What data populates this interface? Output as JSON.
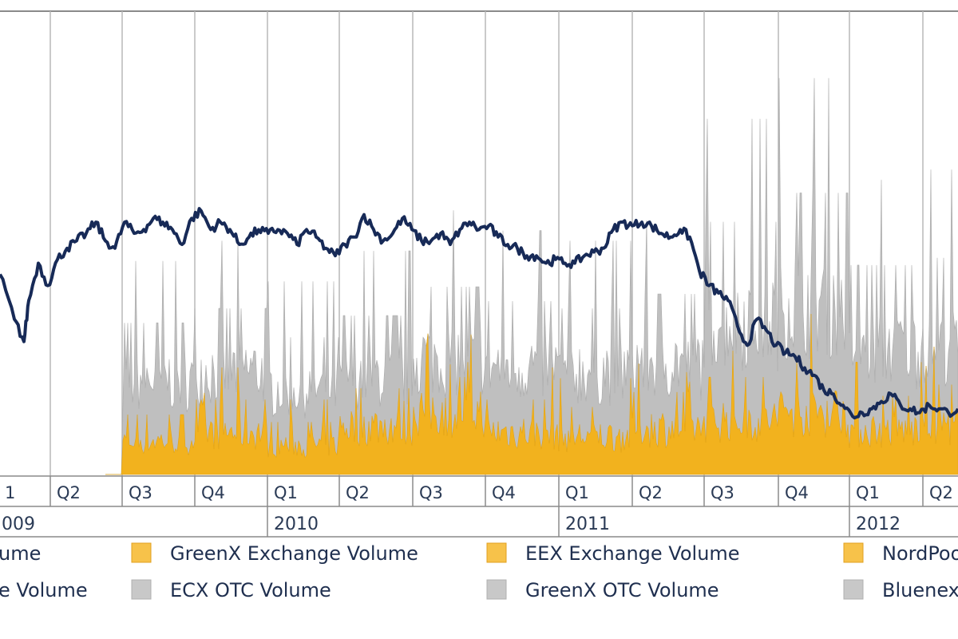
{
  "chart_data": {
    "type": "line",
    "title": "",
    "xlabel": "",
    "ylabel": "",
    "grid": true,
    "legend_position": "bottom",
    "colors": {
      "price_line": "#172a57",
      "exchange_volume": "#f2b21e",
      "otc_volume": "#bfbfbf",
      "gridline": "#b8b8b8",
      "axis_frame": "#8a8a8a",
      "legend_exchange_swatch": "#f7c24a",
      "legend_otc_swatch": "#c8c8c8"
    },
    "quarter_labels": [
      "1",
      "Q2",
      "Q3",
      "Q4",
      "Q1",
      "Q2",
      "Q3",
      "Q4",
      "Q1",
      "Q2",
      "Q3",
      "Q4",
      "Q1",
      "Q2"
    ],
    "year_labels": [
      "009",
      "2010",
      "2011",
      "2012"
    ],
    "x_range": [
      "2009-Q1",
      "2012-Q2"
    ],
    "price_line": {
      "name": "",
      "relative_level": [
        [
          0.0,
          0.52
        ],
        [
          0.015,
          0.4
        ],
        [
          0.025,
          0.34
        ],
        [
          0.03,
          0.45
        ],
        [
          0.04,
          0.55
        ],
        [
          0.05,
          0.49
        ],
        [
          0.06,
          0.56
        ],
        [
          0.07,
          0.59
        ],
        [
          0.08,
          0.61
        ],
        [
          0.09,
          0.63
        ],
        [
          0.1,
          0.66
        ],
        [
          0.11,
          0.61
        ],
        [
          0.12,
          0.59
        ],
        [
          0.13,
          0.66
        ],
        [
          0.14,
          0.63
        ],
        [
          0.15,
          0.64
        ],
        [
          0.16,
          0.67
        ],
        [
          0.17,
          0.66
        ],
        [
          0.18,
          0.64
        ],
        [
          0.19,
          0.6
        ],
        [
          0.2,
          0.67
        ],
        [
          0.21,
          0.69
        ],
        [
          0.22,
          0.64
        ],
        [
          0.23,
          0.66
        ],
        [
          0.24,
          0.64
        ],
        [
          0.25,
          0.6
        ],
        [
          0.26,
          0.62
        ],
        [
          0.27,
          0.64
        ],
        [
          0.28,
          0.63
        ],
        [
          0.29,
          0.64
        ],
        [
          0.3,
          0.63
        ],
        [
          0.31,
          0.6
        ],
        [
          0.32,
          0.64
        ],
        [
          0.33,
          0.62
        ],
        [
          0.34,
          0.59
        ],
        [
          0.35,
          0.57
        ],
        [
          0.36,
          0.6
        ],
        [
          0.37,
          0.62
        ],
        [
          0.38,
          0.68
        ],
        [
          0.39,
          0.64
        ],
        [
          0.4,
          0.61
        ],
        [
          0.41,
          0.63
        ],
        [
          0.42,
          0.67
        ],
        [
          0.43,
          0.64
        ],
        [
          0.44,
          0.61
        ],
        [
          0.45,
          0.61
        ],
        [
          0.46,
          0.63
        ],
        [
          0.47,
          0.6
        ],
        [
          0.48,
          0.64
        ],
        [
          0.49,
          0.66
        ],
        [
          0.5,
          0.64
        ],
        [
          0.51,
          0.65
        ],
        [
          0.52,
          0.62
        ],
        [
          0.53,
          0.6
        ],
        [
          0.54,
          0.59
        ],
        [
          0.55,
          0.57
        ],
        [
          0.56,
          0.57
        ],
        [
          0.57,
          0.55
        ],
        [
          0.58,
          0.56
        ],
        [
          0.59,
          0.55
        ],
        [
          0.6,
          0.55
        ],
        [
          0.61,
          0.57
        ],
        [
          0.62,
          0.58
        ],
        [
          0.63,
          0.59
        ],
        [
          0.64,
          0.64
        ],
        [
          0.65,
          0.66
        ],
        [
          0.66,
          0.65
        ],
        [
          0.67,
          0.66
        ],
        [
          0.68,
          0.65
        ],
        [
          0.69,
          0.63
        ],
        [
          0.7,
          0.62
        ],
        [
          0.71,
          0.64
        ],
        [
          0.72,
          0.62
        ],
        [
          0.73,
          0.53
        ],
        [
          0.74,
          0.49
        ],
        [
          0.75,
          0.47
        ],
        [
          0.76,
          0.45
        ],
        [
          0.77,
          0.38
        ],
        [
          0.78,
          0.33
        ],
        [
          0.79,
          0.4
        ],
        [
          0.8,
          0.37
        ],
        [
          0.81,
          0.33
        ],
        [
          0.82,
          0.31
        ],
        [
          0.83,
          0.3
        ],
        [
          0.84,
          0.27
        ],
        [
          0.85,
          0.25
        ],
        [
          0.86,
          0.21
        ],
        [
          0.87,
          0.2
        ],
        [
          0.88,
          0.17
        ],
        [
          0.89,
          0.14
        ],
        [
          0.9,
          0.15
        ],
        [
          0.91,
          0.16
        ],
        [
          0.92,
          0.18
        ],
        [
          0.93,
          0.2
        ],
        [
          0.94,
          0.17
        ],
        [
          0.95,
          0.16
        ],
        [
          0.96,
          0.15
        ],
        [
          0.97,
          0.17
        ],
        [
          0.98,
          0.16
        ],
        [
          0.99,
          0.15
        ],
        [
          1.0,
          0.16
        ]
      ]
    },
    "series": [
      {
        "name": "",
        "kind": "exchange_volume",
        "relative_level_by_quarter": [
          0.0,
          0.0,
          0.16,
          0.2,
          0.14,
          0.23,
          0.3,
          0.2,
          0.18,
          0.22,
          0.26,
          0.3,
          0.21,
          0.24
        ]
      },
      {
        "name": "",
        "kind": "otc_volume",
        "relative_level_by_quarter": [
          0.0,
          0.0,
          0.42,
          0.46,
          0.38,
          0.44,
          0.52,
          0.48,
          0.46,
          0.5,
          0.7,
          0.78,
          0.58,
          0.6
        ]
      }
    ],
    "legend": [
      {
        "label": "ume",
        "swatch": "none"
      },
      {
        "label": "GreenX Exchange Volume",
        "swatch": "exchange"
      },
      {
        "label": "EEX Exchange Volume",
        "swatch": "exchange"
      },
      {
        "label": "NordPoo",
        "swatch": "exchange"
      },
      {
        "label": "e Volume",
        "swatch": "none"
      },
      {
        "label": "ECX OTC Volume",
        "swatch": "otc"
      },
      {
        "label": "GreenX OTC Volume",
        "swatch": "otc"
      },
      {
        "label": "Bluenex",
        "swatch": "otc"
      }
    ]
  }
}
